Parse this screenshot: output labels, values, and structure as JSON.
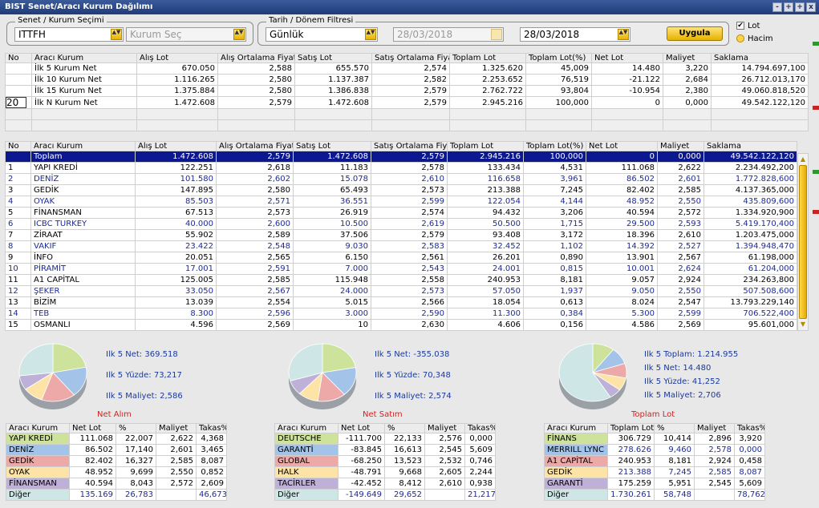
{
  "window": {
    "title": "BIST Senet/Aracı Kurum Dağılımı",
    "buttons": [
      "-",
      "+",
      "+",
      "x"
    ]
  },
  "filters": {
    "senet_group_label": "Senet / Kurum Seçimi",
    "senet_value": "ITTFH",
    "kurum_placeholder": "Kurum Seç",
    "tarih_group_label": "Tarih / Dönem Filtresi",
    "period_value": "Günlük",
    "start_date": "28/03/2018",
    "end_date": "28/03/2018",
    "apply_label": "Uygula",
    "lot_label": "Lot",
    "hacim_label": "Hacim"
  },
  "summary_table": {
    "headers": [
      "No",
      "Aracı Kurum",
      "Alış Lot",
      "Alış Ortalama Fiyat",
      "Satış Lot",
      "Satış Ortalama Fiyat",
      "Toplam Lot",
      "Toplam Lot(%)",
      "Net Lot",
      "Maliyet",
      "Saklama"
    ],
    "n_value": "20",
    "rows": [
      [
        "",
        "İlk 5 Kurum Net",
        "670.050",
        "2,588",
        "655.570",
        "2,574",
        "1.325.620",
        "45,009",
        "14.480",
        "3,220",
        "14.794.697,100"
      ],
      [
        "",
        "İlk 10 Kurum Net",
        "1.116.265",
        "2,580",
        "1.137.387",
        "2,582",
        "2.253.652",
        "76,519",
        "-21.122",
        "2,684",
        "26.712.013,170"
      ],
      [
        "",
        "İlk 15 Kurum Net",
        "1.375.884",
        "2,580",
        "1.386.838",
        "2,579",
        "2.762.722",
        "93,804",
        "-10.954",
        "2,380",
        "49.060.818,520"
      ],
      [
        "",
        "İlk N Kurum Net",
        "1.472.608",
        "2,579",
        "1.472.608",
        "2,579",
        "2.945.216",
        "100,000",
        "0",
        "0,000",
        "49.542.122,120"
      ]
    ]
  },
  "main_table": {
    "headers": [
      "No",
      "Aracı Kurum",
      "Alış Lot",
      "Alış Ortalama Fiyat",
      "Satış Lot",
      "Satış Ortalama Fiya",
      "Toplam Lot",
      "Toplam Lot(%)",
      "Net Lot",
      "Maliyet",
      "Saklama"
    ],
    "rows": [
      [
        "",
        "Toplam",
        "1.472.608",
        "2,579",
        "1.472.608",
        "2,579",
        "2.945.216",
        "100,000",
        "0",
        "0,000",
        "49.542.122,120"
      ],
      [
        "1",
        "YAPI KREDİ",
        "122.251",
        "2,618",
        "11.183",
        "2,578",
        "133.434",
        "4,531",
        "111.068",
        "2,622",
        "2.234.492,200"
      ],
      [
        "2",
        "DENİZ",
        "101.580",
        "2,602",
        "15.078",
        "2,610",
        "116.658",
        "3,961",
        "86.502",
        "2,601",
        "1.772.828,600"
      ],
      [
        "3",
        "GEDİK",
        "147.895",
        "2,580",
        "65.493",
        "2,573",
        "213.388",
        "7,245",
        "82.402",
        "2,585",
        "4.137.365,000"
      ],
      [
        "4",
        "OYAK",
        "85.503",
        "2,571",
        "36.551",
        "2,599",
        "122.054",
        "4,144",
        "48.952",
        "2,550",
        "435.809,600"
      ],
      [
        "5",
        "FİNANSMAN",
        "67.513",
        "2,573",
        "26.919",
        "2,574",
        "94.432",
        "3,206",
        "40.594",
        "2,572",
        "1.334.920,900"
      ],
      [
        "6",
        "ICBC TURKEY",
        "40.000",
        "2,600",
        "10.500",
        "2,619",
        "50.500",
        "1,715",
        "29.500",
        "2,593",
        "5.419.170,400"
      ],
      [
        "7",
        "ZİRAAT",
        "55.902",
        "2,589",
        "37.506",
        "2,579",
        "93.408",
        "3,172",
        "18.396",
        "2,610",
        "1.203.475,000"
      ],
      [
        "8",
        "VAKIF",
        "23.422",
        "2,548",
        "9.030",
        "2,583",
        "32.452",
        "1,102",
        "14.392",
        "2,527",
        "1.394.948,470"
      ],
      [
        "9",
        "İNFO",
        "20.051",
        "2,565",
        "6.150",
        "2,561",
        "26.201",
        "0,890",
        "13.901",
        "2,567",
        "61.198,000"
      ],
      [
        "10",
        "PİRAMİT",
        "17.001",
        "2,591",
        "7.000",
        "2,543",
        "24.001",
        "0,815",
        "10.001",
        "2,624",
        "61.204,000"
      ],
      [
        "11",
        "A1 CAPİTAL",
        "125.005",
        "2,585",
        "115.948",
        "2,558",
        "240.953",
        "8,181",
        "9.057",
        "2,924",
        "234.263,800"
      ],
      [
        "12",
        "ŞEKER",
        "33.050",
        "2,567",
        "24.000",
        "2,573",
        "57.050",
        "1,937",
        "9.050",
        "2,550",
        "507.508,600"
      ],
      [
        "13",
        "BİZİM",
        "13.039",
        "2,554",
        "5.015",
        "2,566",
        "18.054",
        "0,613",
        "8.024",
        "2,547",
        "13.793.229,140"
      ],
      [
        "14",
        "TEB",
        "8.300",
        "2,596",
        "3.000",
        "2,590",
        "11.300",
        "0,384",
        "5.300",
        "2,599",
        "706.522,400"
      ],
      [
        "15",
        "OSMANLI",
        "4.596",
        "2,569",
        "10",
        "2,630",
        "4.606",
        "0,156",
        "4.586",
        "2,569",
        "95.601,000"
      ]
    ]
  },
  "panels": [
    {
      "title": "Net Alım",
      "stats": [
        "Ilk 5 Net: 369.518",
        "Ilk 5 Yüzde: 73,217",
        "Ilk 5 Maliyet: 2,586"
      ],
      "headers": [
        "Aracı Kurum",
        "Net Lot",
        "%",
        "Maliyet",
        "Takas%"
      ],
      "rows": [
        [
          "YAPI KREDİ",
          "111.068",
          "22,007",
          "2,622",
          "4,368"
        ],
        [
          "DENİZ",
          "86.502",
          "17,140",
          "2,601",
          "3,465"
        ],
        [
          "GEDİK",
          "82.402",
          "16,327",
          "2,585",
          "8,087"
        ],
        [
          "OYAK",
          "48.952",
          "9,699",
          "2,550",
          "0,852"
        ],
        [
          "FİNANSMAN",
          "40.594",
          "8,043",
          "2,572",
          "2,609"
        ],
        [
          "Diğer",
          "135.169",
          "26,783",
          "",
          "46,673"
        ]
      ],
      "pie": [
        22.007,
        17.14,
        16.327,
        9.699,
        8.043,
        26.783
      ]
    },
    {
      "title": "Net Satım",
      "stats": [
        "Ilk 5 Net: -355.038",
        "Ilk 5 Yüzde: 70,348",
        "Ilk 5 Maliyet: 2,574"
      ],
      "headers": [
        "Aracı Kurum",
        "Net Lot",
        "%",
        "Maliyet",
        "Takas%"
      ],
      "rows": [
        [
          "DEUTSCHE",
          "-111.700",
          "22,133",
          "2,576",
          "0,000"
        ],
        [
          "GARANTİ",
          "-83.845",
          "16,613",
          "2,545",
          "5,609"
        ],
        [
          "GLOBAL",
          "-68.250",
          "13,523",
          "2,532",
          "0,746"
        ],
        [
          "HALK",
          "-48.791",
          "9,668",
          "2,605",
          "2,244"
        ],
        [
          "TACİRLER",
          "-42.452",
          "8,412",
          "2,610",
          "0,938"
        ],
        [
          "Diğer",
          "-149.649",
          "29,652",
          "",
          "21,217"
        ]
      ],
      "pie": [
        22.133,
        16.613,
        13.523,
        9.668,
        8.412,
        29.652
      ]
    },
    {
      "title": "Toplam Lot",
      "stats": [
        "Ilk 5 Toplam: 1.214.955",
        "Ilk 5 Net: 14.480",
        "Ilk 5 Yüzde: 41,252",
        "Ilk 5 Maliyet: 2,706"
      ],
      "headers": [
        "Aracı Kurum",
        "Toplam Lot",
        "%",
        "Maliyet",
        "Takas%"
      ],
      "rows": [
        [
          "FİNANS",
          "306.729",
          "10,414",
          "2,896",
          "3,920"
        ],
        [
          "MERRILL LYNC",
          "278.626",
          "9,460",
          "2,578",
          "0,000"
        ],
        [
          "A1 CAPİTAL",
          "240.953",
          "8,181",
          "2,924",
          "0,458"
        ],
        [
          "GEDİK",
          "213.388",
          "7,245",
          "2,585",
          "8,087"
        ],
        [
          "GARANTİ",
          "175.259",
          "5,951",
          "2,545",
          "5,609"
        ],
        [
          "Diğer",
          "1.730.261",
          "58,748",
          "",
          "78,762"
        ]
      ],
      "pie": [
        10.414,
        9.46,
        8.181,
        7.245,
        5.951,
        58.748
      ]
    }
  ],
  "colors": {
    "c1": "#cde29a",
    "c2": "#a3c4e8",
    "c3": "#eda8a8",
    "c4": "#fde4a6",
    "c5": "#bfb0d8",
    "c6": "#cfe6e6"
  }
}
